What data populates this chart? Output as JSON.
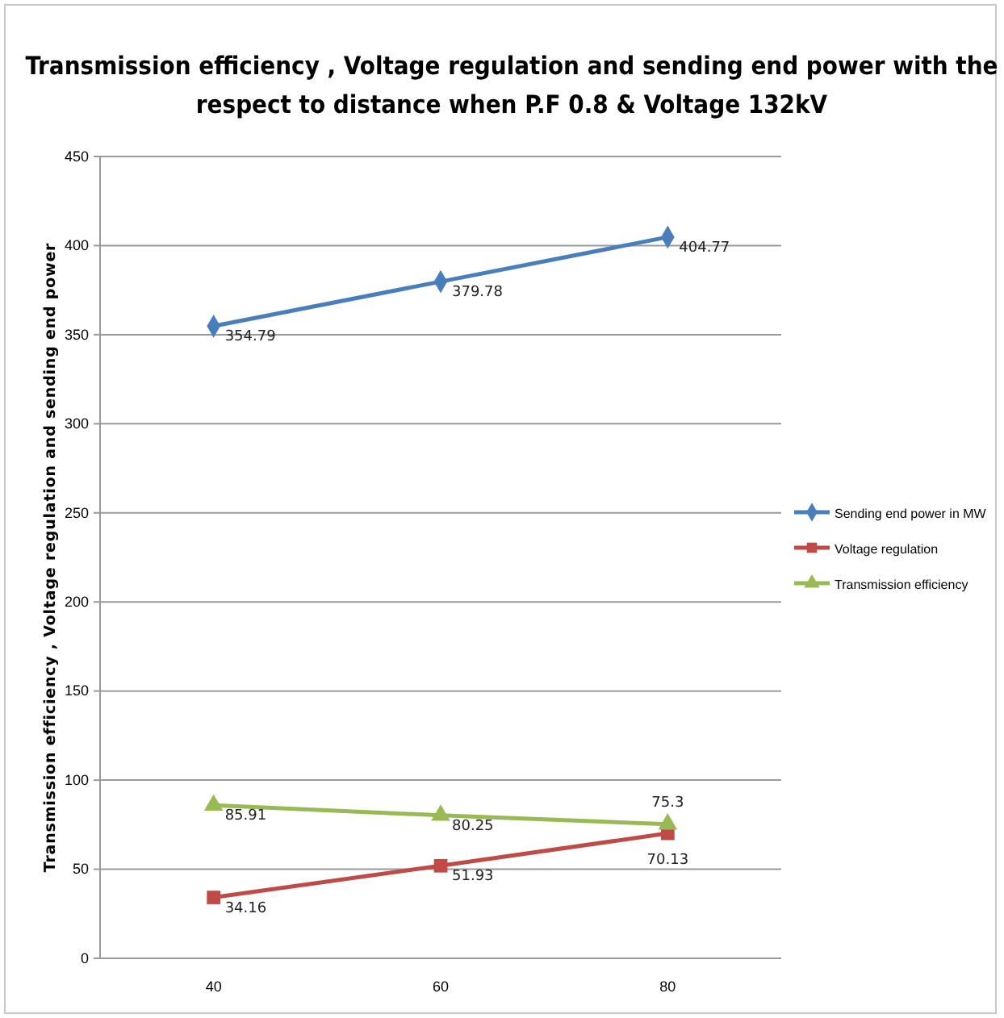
{
  "chart_data": {
    "type": "line",
    "title": "Transmission efficiency , Voltage regulation and sending end power with the respect to distance when P.F 0.8 & Voltage 132kV",
    "ylabel": "Transmission efficiency , Voltage regulation and sending end power",
    "categories": [
      "40",
      "60",
      "80"
    ],
    "series": [
      {
        "name": "Sending end power in MW",
        "color": "#4a7ebb",
        "marker": "diamond",
        "values": [
          354.79,
          379.78,
          404.77
        ]
      },
      {
        "name": "Voltage regulation",
        "color": "#be4b48",
        "marker": "square",
        "values": [
          34.16,
          51.93,
          70.13
        ]
      },
      {
        "name": "Transmission efficiency",
        "color": "#98b954",
        "marker": "triangle",
        "values": [
          85.91,
          80.25,
          75.3
        ]
      }
    ],
    "ylim": [
      0,
      450
    ],
    "yticks": [
      0,
      50,
      100,
      150,
      200,
      250,
      300,
      350,
      400,
      450
    ],
    "grid": "y",
    "legend": "right",
    "data_labels": true
  }
}
